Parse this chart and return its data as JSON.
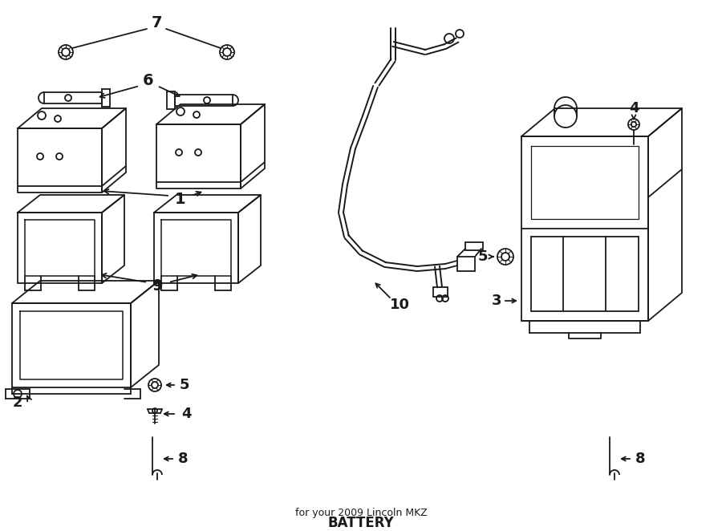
{
  "title": "BATTERY",
  "subtitle": "for your 2009 Lincoln MKZ",
  "bg_color": "#ffffff",
  "line_color": "#1a1a1a",
  "fig_width": 9.0,
  "fig_height": 6.62,
  "dpi": 100
}
